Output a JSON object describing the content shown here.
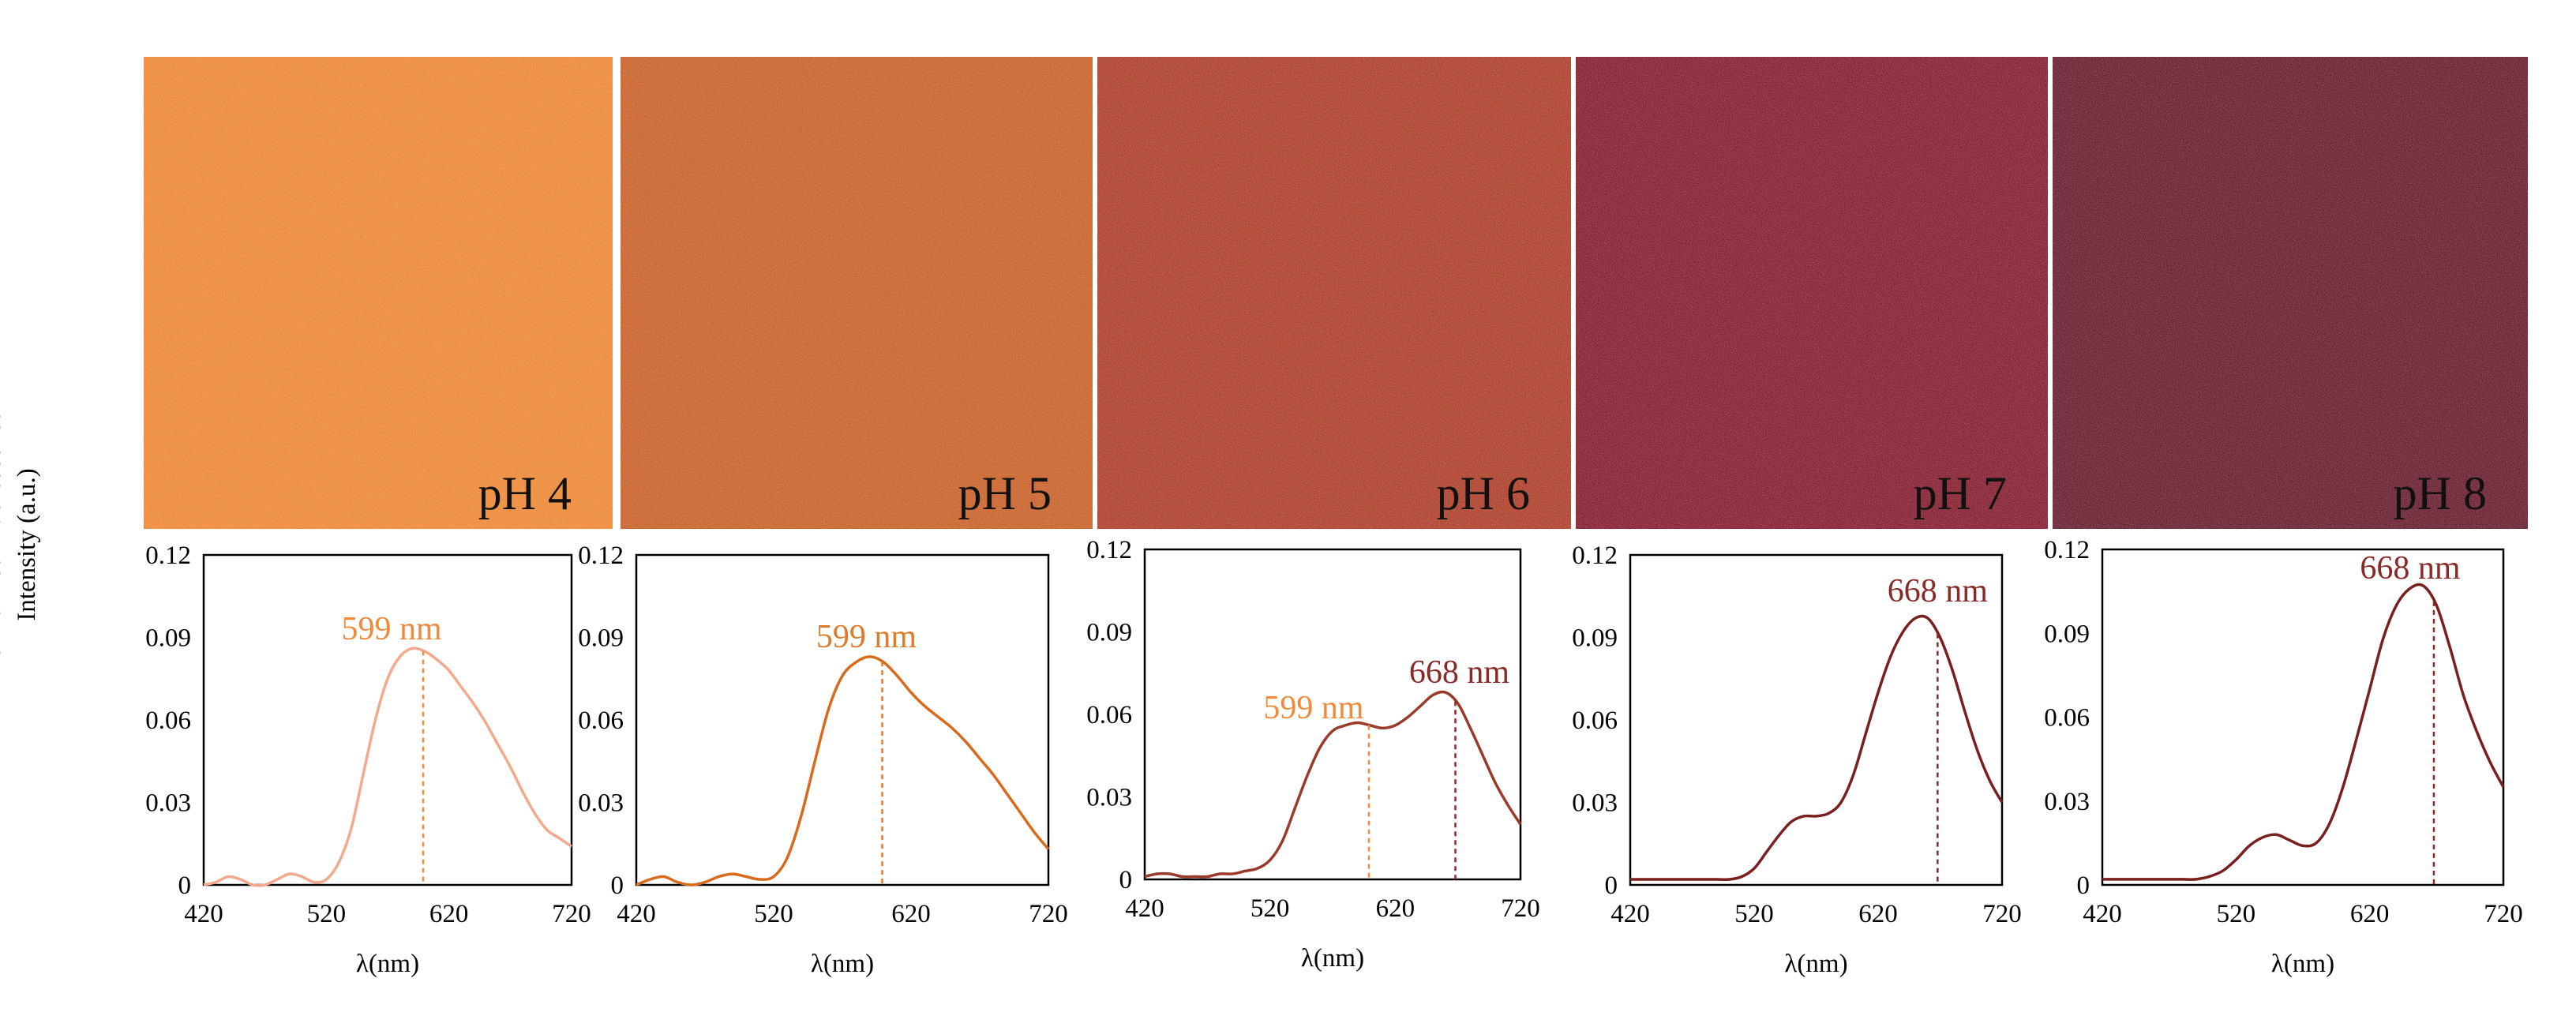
{
  "figure": {
    "y_axis_title_line1": "Normalized Fluorescence",
    "y_axis_title_line2": "Intensity (a.u.)"
  },
  "images": [
    {
      "label": "pH 4",
      "color": "#ec8438"
    },
    {
      "label": "pH 5",
      "color": "#c55a2a"
    },
    {
      "label": "pH 6",
      "color": "#a8352b"
    },
    {
      "label": "pH 7",
      "color": "#7c1230"
    },
    {
      "label": "pH 8",
      "color": "#5e1230"
    }
  ],
  "chart_data": [
    {
      "type": "line",
      "title": "pH 4",
      "xlabel": "λ(nm)",
      "ylabel": "Normalized Fluorescence Intensity (a.u.)",
      "xlim": [
        420,
        720
      ],
      "ylim": [
        0,
        0.12
      ],
      "xticks": [
        "420",
        "520",
        "620",
        "720"
      ],
      "yticks": [
        "0",
        "0.03",
        "0.06",
        "0.09",
        "0.12"
      ],
      "color": "#f4a98c",
      "series": [
        {
          "name": "pH 4",
          "x": [
            420,
            430,
            440,
            450,
            460,
            470,
            480,
            490,
            500,
            510,
            520,
            530,
            540,
            550,
            560,
            570,
            580,
            590,
            600,
            610,
            620,
            630,
            640,
            650,
            660,
            670,
            680,
            690,
            700,
            710,
            720
          ],
          "y": [
            0.0,
            0.001,
            0.003,
            0.002,
            0.0,
            0.0,
            0.002,
            0.004,
            0.003,
            0.001,
            0.002,
            0.008,
            0.02,
            0.04,
            0.06,
            0.075,
            0.083,
            0.086,
            0.085,
            0.082,
            0.078,
            0.072,
            0.066,
            0.059,
            0.051,
            0.043,
            0.034,
            0.026,
            0.02,
            0.017,
            0.014
          ]
        }
      ],
      "peaks": [
        {
          "x": 599,
          "label": "599 nm",
          "label_color": "#f08a3c"
        }
      ]
    },
    {
      "type": "line",
      "title": "pH 5",
      "xlabel": "λ(nm)",
      "ylabel": "Normalized Fluorescence Intensity (a.u.)",
      "xlim": [
        420,
        720
      ],
      "ylim": [
        0,
        0.12
      ],
      "xticks": [
        "420",
        "520",
        "620",
        "720"
      ],
      "yticks": [
        "0",
        "0.03",
        "0.06",
        "0.09",
        "0.12"
      ],
      "color": "#d96a1c",
      "series": [
        {
          "name": "pH 5",
          "x": [
            420,
            430,
            440,
            450,
            460,
            470,
            480,
            490,
            500,
            510,
            520,
            530,
            540,
            550,
            560,
            570,
            580,
            590,
            600,
            610,
            620,
            630,
            640,
            650,
            660,
            670,
            680,
            690,
            700,
            710,
            720
          ],
          "y": [
            0.0,
            0.002,
            0.003,
            0.001,
            0.0,
            0.001,
            0.003,
            0.004,
            0.003,
            0.002,
            0.003,
            0.01,
            0.025,
            0.045,
            0.064,
            0.076,
            0.081,
            0.083,
            0.081,
            0.076,
            0.07,
            0.065,
            0.061,
            0.057,
            0.052,
            0.046,
            0.04,
            0.033,
            0.026,
            0.019,
            0.013
          ]
        }
      ],
      "peaks": [
        {
          "x": 599,
          "label": "599 nm",
          "label_color": "#e07a2c"
        }
      ]
    },
    {
      "type": "line",
      "title": "pH 6",
      "xlabel": "λ(nm)",
      "ylabel": "Normalized Fluorescence Intensity (a.u.)",
      "xlim": [
        420,
        720
      ],
      "ylim": [
        0,
        0.12
      ],
      "xticks": [
        "420",
        "520",
        "620",
        "720"
      ],
      "yticks": [
        "0",
        "0.03",
        "0.06",
        "0.09",
        "0.12"
      ],
      "color": "#9c3a2a",
      "series": [
        {
          "name": "pH 6",
          "x": [
            420,
            430,
            440,
            450,
            460,
            470,
            480,
            490,
            500,
            510,
            520,
            530,
            540,
            550,
            560,
            570,
            580,
            590,
            600,
            610,
            620,
            630,
            640,
            650,
            660,
            670,
            680,
            690,
            700,
            710,
            720
          ],
          "y": [
            0.001,
            0.002,
            0.002,
            0.001,
            0.001,
            0.001,
            0.002,
            0.002,
            0.003,
            0.004,
            0.007,
            0.014,
            0.026,
            0.038,
            0.048,
            0.054,
            0.056,
            0.057,
            0.056,
            0.055,
            0.056,
            0.059,
            0.063,
            0.067,
            0.068,
            0.064,
            0.055,
            0.045,
            0.035,
            0.027,
            0.02
          ]
        }
      ],
      "peaks": [
        {
          "x": 599,
          "label": "599 nm",
          "label_color": "#f08a3c"
        },
        {
          "x": 668,
          "label": "668 nm",
          "label_color": "#8a2a28"
        }
      ]
    },
    {
      "type": "line",
      "title": "pH 7",
      "xlabel": "λ(nm)",
      "ylabel": "Normalized Fluorescence Intensity (a.u.)",
      "xlim": [
        420,
        720
      ],
      "ylim": [
        0,
        0.12
      ],
      "xticks": [
        "420",
        "520",
        "620",
        "720"
      ],
      "yticks": [
        "0",
        "0.03",
        "0.06",
        "0.09",
        "0.12"
      ],
      "color": "#7a1e1e",
      "series": [
        {
          "name": "pH 7",
          "x": [
            420,
            430,
            440,
            450,
            460,
            470,
            480,
            490,
            500,
            510,
            520,
            530,
            540,
            550,
            560,
            570,
            580,
            590,
            600,
            610,
            620,
            630,
            640,
            650,
            660,
            670,
            680,
            690,
            700,
            710,
            720
          ],
          "y": [
            0.002,
            0.002,
            0.002,
            0.002,
            0.002,
            0.002,
            0.002,
            0.002,
            0.002,
            0.003,
            0.006,
            0.012,
            0.018,
            0.023,
            0.025,
            0.025,
            0.026,
            0.03,
            0.04,
            0.055,
            0.07,
            0.083,
            0.092,
            0.097,
            0.097,
            0.09,
            0.078,
            0.063,
            0.049,
            0.038,
            0.03
          ]
        }
      ],
      "peaks": [
        {
          "x": 668,
          "label": "668 nm",
          "label_color": "#8a2a28"
        }
      ]
    },
    {
      "type": "line",
      "title": "pH 8",
      "xlabel": "λ(nm)",
      "ylabel": "Normalized Fluorescence Intensity (a.u.)",
      "xlim": [
        420,
        720
      ],
      "ylim": [
        0,
        0.12
      ],
      "xticks": [
        "420",
        "520",
        "620",
        "720"
      ],
      "yticks": [
        "0",
        "0.03",
        "0.06",
        "0.09",
        "0.12"
      ],
      "color": "#7a1e1e",
      "series": [
        {
          "name": "pH 8",
          "x": [
            420,
            430,
            440,
            450,
            460,
            470,
            480,
            490,
            500,
            510,
            520,
            530,
            540,
            550,
            560,
            570,
            580,
            590,
            600,
            610,
            620,
            630,
            640,
            650,
            660,
            670,
            680,
            690,
            700,
            710,
            720
          ],
          "y": [
            0.002,
            0.002,
            0.002,
            0.002,
            0.002,
            0.002,
            0.002,
            0.002,
            0.003,
            0.005,
            0.009,
            0.014,
            0.017,
            0.018,
            0.016,
            0.014,
            0.015,
            0.022,
            0.035,
            0.052,
            0.07,
            0.088,
            0.1,
            0.106,
            0.107,
            0.1,
            0.085,
            0.068,
            0.055,
            0.044,
            0.035
          ]
        }
      ],
      "peaks": [
        {
          "x": 668,
          "label": "668 nm",
          "label_color": "#8a2a28"
        }
      ]
    }
  ]
}
